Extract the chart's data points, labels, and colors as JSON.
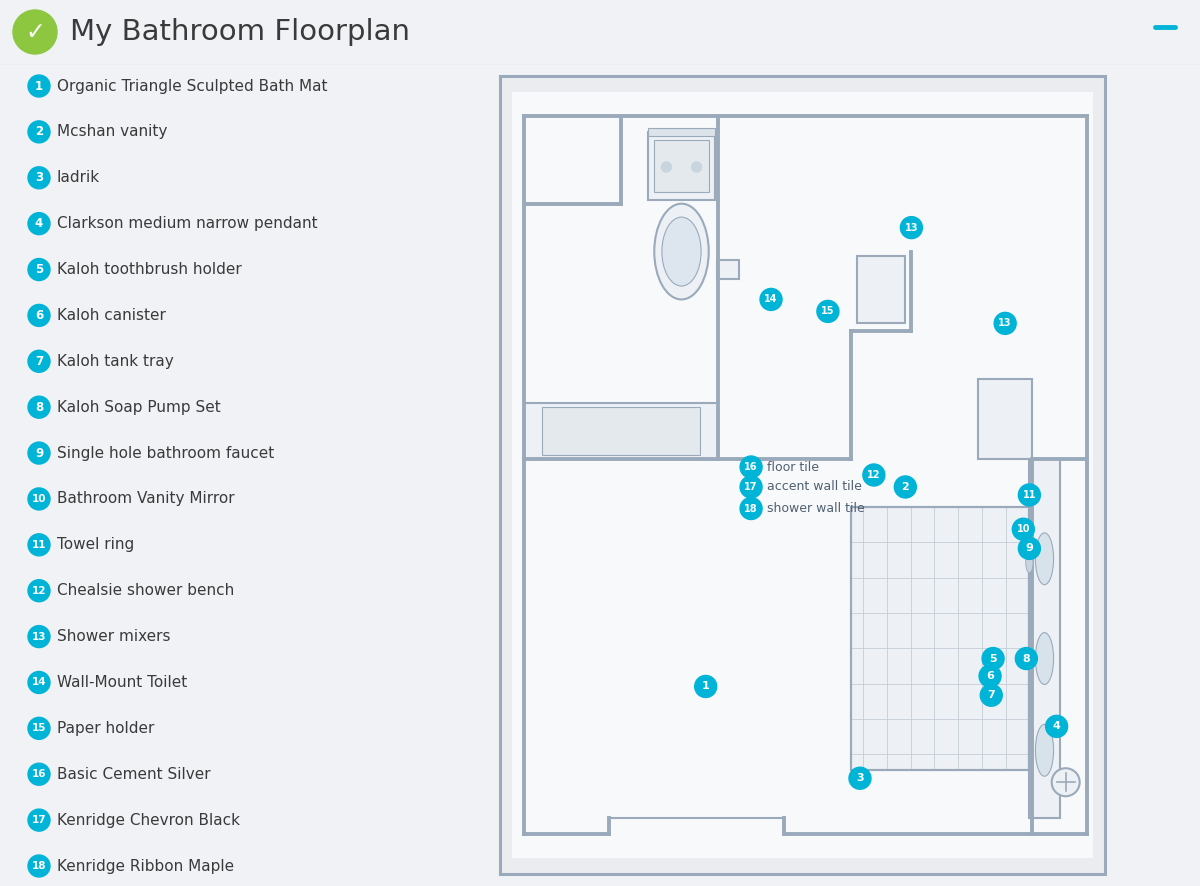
{
  "title": "My Bathroom Floorplan",
  "bg_color": "#f0f2f5",
  "header_bg": "#ffffff",
  "accent_color": "#00b4d8",
  "wall_color": "#9aaabb",
  "inner_wall": "#a0b0c0",
  "floor_color": "#f8f9fb",
  "legend_items": [
    {
      "num": 1,
      "label": "Organic Triangle Sculpted Bath Mat"
    },
    {
      "num": 2,
      "label": "Mcshan vanity"
    },
    {
      "num": 3,
      "label": "Iadrik"
    },
    {
      "num": 4,
      "label": "Clarkson medium narrow pendant"
    },
    {
      "num": 5,
      "label": "Kaloh toothbrush holder"
    },
    {
      "num": 6,
      "label": "Kaloh canister"
    },
    {
      "num": 7,
      "label": "Kaloh tank tray"
    },
    {
      "num": 8,
      "label": "Kaloh Soap Pump Set"
    },
    {
      "num": 9,
      "label": "Single hole bathroom faucet"
    },
    {
      "num": 10,
      "label": "Bathroom Vanity Mirror"
    },
    {
      "num": 11,
      "label": "Towel ring"
    },
    {
      "num": 12,
      "label": "Chealsie shower bench"
    },
    {
      "num": 13,
      "label": "Shower mixers"
    },
    {
      "num": 14,
      "label": "Wall-Mount Toilet"
    },
    {
      "num": 15,
      "label": "Paper holder"
    },
    {
      "num": 16,
      "label": "Basic Cement Silver"
    },
    {
      "num": 17,
      "label": "Kenridge Chevron Black"
    },
    {
      "num": 18,
      "label": "Kenridge Ribbon Maple"
    }
  ],
  "dot_positions": [
    {
      "num": 1,
      "fx": 0.34,
      "fy": 0.235,
      "lbl": null
    },
    {
      "num": 2,
      "fx": 0.67,
      "fy": 0.485,
      "lbl": null
    },
    {
      "num": 3,
      "fx": 0.595,
      "fy": 0.12,
      "lbl": null
    },
    {
      "num": 4,
      "fx": 0.92,
      "fy": 0.185,
      "lbl": null
    },
    {
      "num": 5,
      "fx": 0.815,
      "fy": 0.27,
      "lbl": null
    },
    {
      "num": 6,
      "fx": 0.81,
      "fy": 0.248,
      "lbl": null
    },
    {
      "num": 7,
      "fx": 0.812,
      "fy": 0.224,
      "lbl": null
    },
    {
      "num": 8,
      "fx": 0.87,
      "fy": 0.27,
      "lbl": null
    },
    {
      "num": 9,
      "fx": 0.875,
      "fy": 0.408,
      "lbl": null
    },
    {
      "num": 10,
      "fx": 0.865,
      "fy": 0.432,
      "lbl": null
    },
    {
      "num": 11,
      "fx": 0.875,
      "fy": 0.475,
      "lbl": null
    },
    {
      "num": 12,
      "fx": 0.618,
      "fy": 0.5,
      "lbl": null
    },
    {
      "num": 13,
      "fx": 0.68,
      "fy": 0.81,
      "lbl": null
    },
    {
      "num": 13,
      "fx": 0.835,
      "fy": 0.69,
      "lbl": null
    },
    {
      "num": 14,
      "fx": 0.448,
      "fy": 0.72,
      "lbl": null
    },
    {
      "num": 15,
      "fx": 0.542,
      "fy": 0.705,
      "lbl": null
    },
    {
      "num": 16,
      "fx": 0.415,
      "fy": 0.51,
      "lbl": "floor tile"
    },
    {
      "num": 17,
      "fx": 0.415,
      "fy": 0.485,
      "lbl": "accent wall tile"
    },
    {
      "num": 18,
      "fx": 0.415,
      "fy": 0.458,
      "lbl": "shower wall tile"
    }
  ]
}
